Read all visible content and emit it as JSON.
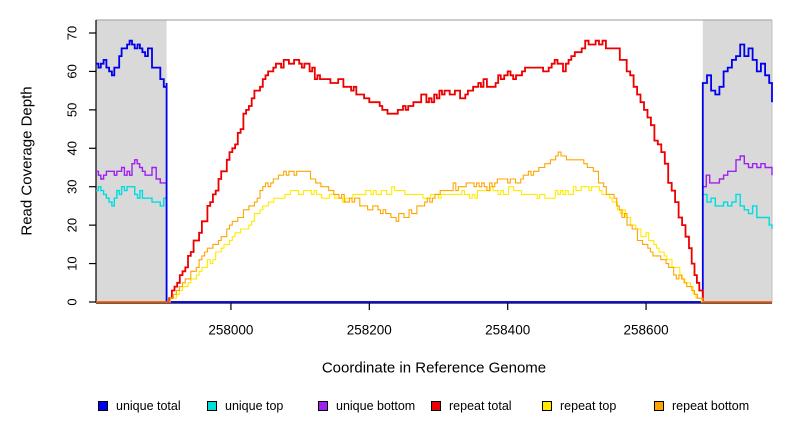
{
  "chart_data": {
    "type": "line",
    "title": "",
    "xlabel": "Coordinate in Reference Genome",
    "ylabel": "Read Coverage Depth",
    "xlim": [
      257805,
      258782
    ],
    "ylim": [
      0,
      70
    ],
    "x_ticks": [
      258000,
      258200,
      258400,
      258600
    ],
    "y_ticks": [
      0,
      10,
      20,
      30,
      40,
      50,
      60,
      70
    ],
    "grid": false,
    "legend_position": "bottom",
    "shaded_regions": [
      {
        "name": "left-flank",
        "x0": 257805,
        "x1": 257907,
        "color": "#d9d9d9"
      },
      {
        "name": "right-flank",
        "x0": 258682,
        "x1": 258782,
        "color": "#d9d9d9"
      }
    ],
    "series": [
      {
        "name": "unique total",
        "color": "#0000EE",
        "width": 1.8,
        "noise": 1.1,
        "points": [
          [
            257805,
            62
          ],
          [
            257812,
            63
          ],
          [
            257820,
            61
          ],
          [
            257828,
            59.5
          ],
          [
            257835,
            62
          ],
          [
            257842,
            65
          ],
          [
            257850,
            67.5
          ],
          [
            257857,
            66.5
          ],
          [
            257865,
            67
          ],
          [
            257872,
            65
          ],
          [
            257880,
            64.5
          ],
          [
            257886,
            62
          ],
          [
            257892,
            60
          ],
          [
            257898,
            58.5
          ],
          [
            257903,
            57
          ],
          [
            257907,
            57.5
          ],
          [
            257907,
            0
          ],
          [
            258682,
            0
          ],
          [
            258682,
            57
          ],
          [
            258688,
            59.5
          ],
          [
            258694,
            55
          ],
          [
            258700,
            53.5
          ],
          [
            258706,
            57
          ],
          [
            258712,
            59
          ],
          [
            258718,
            61
          ],
          [
            258724,
            62.5
          ],
          [
            258730,
            64
          ],
          [
            258736,
            65.5
          ],
          [
            258742,
            64
          ],
          [
            258748,
            65
          ],
          [
            258754,
            62.5
          ],
          [
            258760,
            61.5
          ],
          [
            258766,
            63
          ],
          [
            258772,
            59
          ],
          [
            258778,
            57
          ],
          [
            258782,
            53.5
          ]
        ]
      },
      {
        "name": "unique top",
        "color": "#00DDDD",
        "width": 1.4,
        "noise": 1.0,
        "points": [
          [
            257805,
            28.5
          ],
          [
            257812,
            29.5
          ],
          [
            257820,
            27
          ],
          [
            257828,
            26
          ],
          [
            257835,
            28
          ],
          [
            257842,
            29
          ],
          [
            257850,
            30.5
          ],
          [
            257857,
            29.5
          ],
          [
            257865,
            28
          ],
          [
            257872,
            27.5
          ],
          [
            257880,
            27
          ],
          [
            257886,
            26.5
          ],
          [
            257892,
            26
          ],
          [
            257898,
            25.5
          ],
          [
            257903,
            26
          ],
          [
            257907,
            26.5
          ],
          [
            257907,
            0
          ],
          [
            258682,
            0
          ],
          [
            258682,
            27.5
          ],
          [
            258688,
            25.5
          ],
          [
            258694,
            26.5
          ],
          [
            258700,
            25.5
          ],
          [
            258706,
            26
          ],
          [
            258712,
            26.5
          ],
          [
            258718,
            25.5
          ],
          [
            258724,
            27
          ],
          [
            258730,
            27.5
          ],
          [
            258736,
            25.5
          ],
          [
            258742,
            25
          ],
          [
            258748,
            24
          ],
          [
            258754,
            24.5
          ],
          [
            258760,
            22.5
          ],
          [
            258766,
            21.5
          ],
          [
            258772,
            21
          ],
          [
            258778,
            19.5
          ],
          [
            258782,
            19
          ]
        ]
      },
      {
        "name": "unique bottom",
        "color": "#A020F0",
        "width": 1.4,
        "noise": 1.0,
        "points": [
          [
            257805,
            33.5
          ],
          [
            257812,
            32
          ],
          [
            257820,
            34.5
          ],
          [
            257828,
            33
          ],
          [
            257835,
            33.5
          ],
          [
            257842,
            34
          ],
          [
            257850,
            33
          ],
          [
            257857,
            35
          ],
          [
            257861,
            36.5
          ],
          [
            257868,
            35
          ],
          [
            257872,
            34.5
          ],
          [
            257880,
            33.5
          ],
          [
            257886,
            34
          ],
          [
            257892,
            32.5
          ],
          [
            257898,
            31
          ],
          [
            257903,
            30.5
          ],
          [
            257907,
            31
          ],
          [
            257907,
            0
          ],
          [
            258682,
            0
          ],
          [
            258682,
            30
          ],
          [
            258687,
            33
          ],
          [
            258692,
            30.5
          ],
          [
            258700,
            31
          ],
          [
            258706,
            31.5
          ],
          [
            258712,
            32.5
          ],
          [
            258718,
            33.5
          ],
          [
            258724,
            34.5
          ],
          [
            258730,
            36
          ],
          [
            258736,
            37.5
          ],
          [
            258742,
            36
          ],
          [
            258748,
            35
          ],
          [
            258754,
            36.5
          ],
          [
            258760,
            35.5
          ],
          [
            258766,
            37
          ],
          [
            258772,
            35
          ],
          [
            258778,
            34
          ],
          [
            258782,
            33.5
          ]
        ]
      },
      {
        "name": "repeat total",
        "color": "#EE0000",
        "width": 1.8,
        "noise": 1.0,
        "points": [
          [
            257805,
            0
          ],
          [
            257907,
            0
          ],
          [
            257930,
            8
          ],
          [
            257950,
            17
          ],
          [
            257970,
            26
          ],
          [
            257990,
            35
          ],
          [
            258010,
            44
          ],
          [
            258030,
            53
          ],
          [
            258050,
            59
          ],
          [
            258065,
            61.5
          ],
          [
            258080,
            62
          ],
          [
            258095,
            62.5
          ],
          [
            258110,
            61
          ],
          [
            258125,
            58.5
          ],
          [
            258140,
            57
          ],
          [
            258155,
            58
          ],
          [
            258170,
            56
          ],
          [
            258185,
            54
          ],
          [
            258200,
            52.5
          ],
          [
            258215,
            51
          ],
          [
            258230,
            48.5
          ],
          [
            258245,
            49.5
          ],
          [
            258260,
            52
          ],
          [
            258275,
            53.5
          ],
          [
            258290,
            52.5
          ],
          [
            258305,
            55
          ],
          [
            258320,
            54
          ],
          [
            258335,
            53.5
          ],
          [
            258350,
            55.5
          ],
          [
            258365,
            57.5
          ],
          [
            258375,
            56.5
          ],
          [
            258390,
            58.5
          ],
          [
            258400,
            59.5
          ],
          [
            258412,
            58
          ],
          [
            258425,
            60
          ],
          [
            258440,
            61.5
          ],
          [
            258455,
            60.5
          ],
          [
            258468,
            62.5
          ],
          [
            258480,
            61
          ],
          [
            258492,
            63.5
          ],
          [
            258502,
            66
          ],
          [
            258512,
            67
          ],
          [
            258522,
            66.5
          ],
          [
            258532,
            67.5
          ],
          [
            258542,
            66
          ],
          [
            258552,
            66.5
          ],
          [
            258562,
            64
          ],
          [
            258572,
            60
          ],
          [
            258582,
            57
          ],
          [
            258592,
            53
          ],
          [
            258602,
            48
          ],
          [
            258612,
            43
          ],
          [
            258622,
            38
          ],
          [
            258632,
            32
          ],
          [
            258642,
            26
          ],
          [
            258652,
            20
          ],
          [
            258662,
            13
          ],
          [
            258670,
            7
          ],
          [
            258677,
            2
          ],
          [
            258682,
            0
          ],
          [
            258782,
            0
          ]
        ]
      },
      {
        "name": "repeat top",
        "color": "#FFEB00",
        "width": 1.1,
        "noise": 0.85,
        "points": [
          [
            257805,
            0
          ],
          [
            257908,
            0
          ],
          [
            257930,
            3.5
          ],
          [
            257950,
            7.5
          ],
          [
            257970,
            11
          ],
          [
            257990,
            14.5
          ],
          [
            258010,
            18
          ],
          [
            258030,
            21.5
          ],
          [
            258050,
            25
          ],
          [
            258070,
            27.5
          ],
          [
            258090,
            29
          ],
          [
            258105,
            28
          ],
          [
            258120,
            28.5
          ],
          [
            258135,
            27
          ],
          [
            258150,
            27.5
          ],
          [
            258165,
            26.5
          ],
          [
            258180,
            28
          ],
          [
            258195,
            29.5
          ],
          [
            258210,
            28
          ],
          [
            258225,
            28.5
          ],
          [
            258240,
            29.5
          ],
          [
            258255,
            28
          ],
          [
            258270,
            28.5
          ],
          [
            258285,
            27.5
          ],
          [
            258300,
            28
          ],
          [
            258315,
            27.5
          ],
          [
            258330,
            28.5
          ],
          [
            258345,
            27.5
          ],
          [
            258360,
            29
          ],
          [
            258375,
            29.5
          ],
          [
            258390,
            28.5
          ],
          [
            258405,
            29.5
          ],
          [
            258420,
            28
          ],
          [
            258435,
            28.5
          ],
          [
            258450,
            27.5
          ],
          [
            258465,
            28
          ],
          [
            258480,
            28.5
          ],
          [
            258495,
            29.5
          ],
          [
            258510,
            29
          ],
          [
            258525,
            29.5
          ],
          [
            258540,
            28
          ],
          [
            258555,
            25.5
          ],
          [
            258570,
            22.5
          ],
          [
            258585,
            19.5
          ],
          [
            258600,
            17
          ],
          [
            258615,
            14
          ],
          [
            258630,
            11
          ],
          [
            258645,
            8
          ],
          [
            258660,
            4.5
          ],
          [
            258672,
            1.5
          ],
          [
            258680,
            0
          ],
          [
            258782,
            0
          ]
        ]
      },
      {
        "name": "repeat bottom",
        "color": "#FFA500",
        "width": 1.1,
        "noise": 0.85,
        "points": [
          [
            257805,
            0
          ],
          [
            257908,
            0
          ],
          [
            257930,
            5
          ],
          [
            257950,
            10
          ],
          [
            257970,
            14
          ],
          [
            257990,
            18
          ],
          [
            258010,
            22
          ],
          [
            258030,
            26
          ],
          [
            258050,
            30
          ],
          [
            258065,
            32.5
          ],
          [
            258080,
            33.5
          ],
          [
            258095,
            33
          ],
          [
            258105,
            34
          ],
          [
            258115,
            32
          ],
          [
            258130,
            30
          ],
          [
            258145,
            28.5
          ],
          [
            258160,
            27
          ],
          [
            258175,
            26
          ],
          [
            258190,
            25.5
          ],
          [
            258205,
            24.5
          ],
          [
            258220,
            23
          ],
          [
            258235,
            22
          ],
          [
            258250,
            22.5
          ],
          [
            258265,
            24
          ],
          [
            258280,
            26
          ],
          [
            258295,
            27.5
          ],
          [
            258310,
            29
          ],
          [
            258325,
            30
          ],
          [
            258340,
            30.5
          ],
          [
            258355,
            31
          ],
          [
            258370,
            30
          ],
          [
            258385,
            31.5
          ],
          [
            258400,
            32
          ],
          [
            258415,
            31.5
          ],
          [
            258430,
            33
          ],
          [
            258445,
            34.5
          ],
          [
            258458,
            35.5
          ],
          [
            258473,
            38.5
          ],
          [
            258485,
            37.5
          ],
          [
            258500,
            37
          ],
          [
            258510,
            36.5
          ],
          [
            258520,
            35
          ],
          [
            258535,
            31
          ],
          [
            258550,
            27
          ],
          [
            258565,
            23
          ],
          [
            258580,
            19
          ],
          [
            258595,
            15.5
          ],
          [
            258610,
            12.5
          ],
          [
            258625,
            10
          ],
          [
            258640,
            7.5
          ],
          [
            258655,
            5
          ],
          [
            258670,
            2
          ],
          [
            258682,
            0
          ],
          [
            258782,
            0
          ]
        ]
      }
    ]
  },
  "legend": {
    "items": [
      {
        "label": "unique total",
        "color": "#0000EE"
      },
      {
        "label": "unique top",
        "color": "#00DDDD"
      },
      {
        "label": "unique bottom",
        "color": "#A020F0"
      },
      {
        "label": "repeat total",
        "color": "#EE0000"
      },
      {
        "label": "repeat top",
        "color": "#FFEB00"
      },
      {
        "label": "repeat bottom",
        "color": "#FFA500"
      }
    ]
  }
}
